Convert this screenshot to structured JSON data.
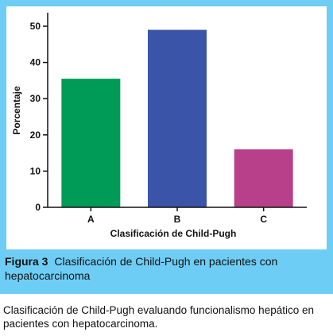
{
  "chart_data": {
    "type": "bar",
    "categories": [
      "A",
      "B",
      "C"
    ],
    "values": [
      35.5,
      49,
      16
    ],
    "colors": [
      "#009b57",
      "#3a54a8",
      "#b8408a"
    ],
    "ylabel": "Porcentaje",
    "xlabel": "Clasificación de Child-Pugh",
    "ylim": [
      0,
      50
    ],
    "yticks": [
      0,
      10,
      20,
      30,
      40,
      50
    ],
    "grid": false
  },
  "caption": {
    "label": "Figura 3",
    "text": "Clasificación de Child-Pugh en pacientes con hepatocarcinoma"
  },
  "description": "Clasificación de Child-Pugh evaluando funcionalismo hepático en pacientes con hepatocarcinoma.",
  "colors": {
    "panel_background": "#6ecdf5",
    "plot_background": "#ffffff"
  }
}
